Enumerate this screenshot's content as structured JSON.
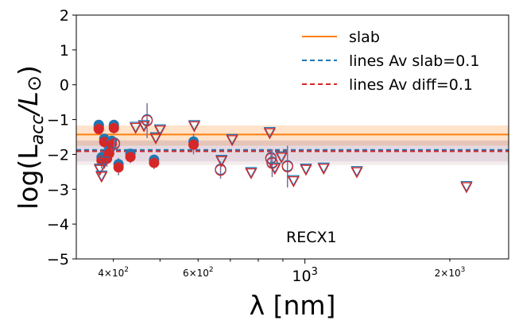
{
  "chart_data": {
    "type": "scatter",
    "title": "",
    "annotation": "RECX1",
    "xlabel": "λ [nm]",
    "ylabel_parts": {
      "pre": "log(L",
      "sub": "acc",
      "post": "/L",
      "sun": "⊙",
      "close": ")"
    },
    "xscale": "log",
    "xlim": [
      335,
      2650
    ],
    "ylim": [
      -5,
      2
    ],
    "yticks": [
      2,
      1,
      0,
      -1,
      -2,
      -3,
      -4,
      -5
    ],
    "ytick_labels": [
      "2",
      "1",
      "0",
      "−1",
      "−2",
      "−3",
      "−4",
      "−5"
    ],
    "xticks_major": [
      {
        "value": 1000,
        "label": "10",
        "sup": "3"
      }
    ],
    "xticks_minor_labeled": [
      {
        "value": 400,
        "base": "4×10",
        "sup": "2"
      },
      {
        "value": 600,
        "base": "6×10",
        "sup": "2"
      },
      {
        "value": 2000,
        "base": "2×10",
        "sup": "3"
      }
    ],
    "xticks_minor_unlabeled": [
      300,
      500,
      700,
      800,
      900,
      3000
    ],
    "lines": [
      {
        "name": "slab",
        "y": -1.43,
        "color": "#ff7f0e",
        "style": "solid",
        "band": [
          -1.75,
          -1.17
        ],
        "band_color": "#ff7f0e"
      },
      {
        "name": "lines Av slab=0.1",
        "y": -1.87,
        "color": "#1f77b4",
        "style": "dashed",
        "band": [
          -2.2,
          -1.6
        ],
        "band_color": "#8a6f9e"
      },
      {
        "name": "lines Av diff=0.1",
        "y": -1.91,
        "color": "#d62728",
        "style": "dashed",
        "band": [
          -2.3,
          -1.6
        ],
        "band_color": "#b07080"
      }
    ],
    "legend_position": "top-right",
    "colors": {
      "blue": "#1f77b4",
      "red": "#d62728",
      "errbar": "#7f6c9c"
    },
    "detections_filled": [
      {
        "x": 373,
        "y": -1.22,
        "err": 0.18
      },
      {
        "x": 373,
        "y": -1.25,
        "err": 0.15
      },
      {
        "x": 378,
        "y": -2.15,
        "err": 0.25
      },
      {
        "x": 383,
        "y": -1.62,
        "err": 0.2
      },
      {
        "x": 388,
        "y": -2.1,
        "err": 0.25
      },
      {
        "x": 392,
        "y": -1.95,
        "err": 0.2
      },
      {
        "x": 397,
        "y": -1.68,
        "err": 0.2
      },
      {
        "x": 401,
        "y": -1.22,
        "err": 0.18
      },
      {
        "x": 410,
        "y": -2.35,
        "err": 0.25
      },
      {
        "x": 434,
        "y": -2.05,
        "err": 0.2
      },
      {
        "x": 486,
        "y": -2.22,
        "err": 0.2
      },
      {
        "x": 587,
        "y": -1.7,
        "err": 0.3
      }
    ],
    "detections_open": [
      {
        "x": 402,
        "y": -1.7,
        "err": 0.2
      },
      {
        "x": 470,
        "y": -1.03,
        "err": 0.5
      },
      {
        "x": 668,
        "y": -2.45,
        "err": 0.25
      },
      {
        "x": 850,
        "y": -2.12,
        "err": 0.25
      },
      {
        "x": 855,
        "y": -2.25,
        "err": 0.4
      },
      {
        "x": 920,
        "y": -2.35,
        "err": 0.6
      }
    ],
    "upper_limits": [
      {
        "x": 375,
        "y": -2.45
      },
      {
        "x": 378,
        "y": -2.65
      },
      {
        "x": 383,
        "y": -2.25
      },
      {
        "x": 445,
        "y": -1.25
      },
      {
        "x": 463,
        "y": -1.2
      },
      {
        "x": 490,
        "y": -1.55
      },
      {
        "x": 500,
        "y": -1.32
      },
      {
        "x": 589,
        "y": -1.2
      },
      {
        "x": 671,
        "y": -2.2
      },
      {
        "x": 706,
        "y": -1.6
      },
      {
        "x": 773,
        "y": -2.55
      },
      {
        "x": 845,
        "y": -1.4
      },
      {
        "x": 866,
        "y": -2.42
      },
      {
        "x": 894,
        "y": -2.1
      },
      {
        "x": 947,
        "y": -2.78
      },
      {
        "x": 1005,
        "y": -2.45
      },
      {
        "x": 1094,
        "y": -2.42
      },
      {
        "x": 1282,
        "y": -2.52
      },
      {
        "x": 2166,
        "y": -2.95
      }
    ]
  }
}
